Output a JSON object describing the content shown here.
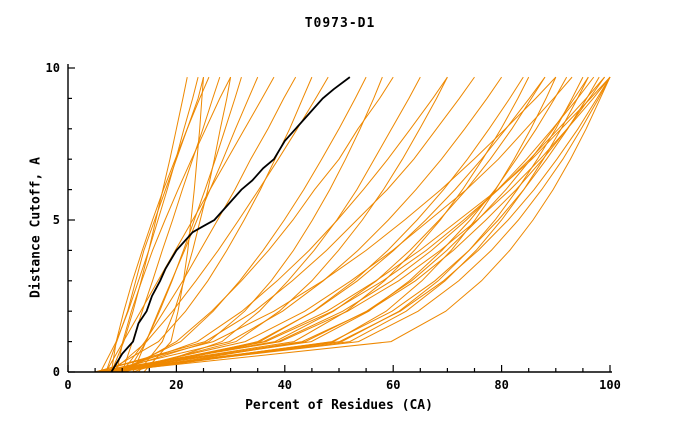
{
  "chart_data": {
    "type": "line",
    "title": "T0973-D1",
    "xlabel": "Percent of Residues (CA)",
    "ylabel": "Distance Cutoff, A",
    "xlim": [
      0,
      100
    ],
    "ylim": [
      0,
      10
    ],
    "x_major_ticks": [
      0,
      20,
      40,
      60,
      80,
      100
    ],
    "x_minor_step": 5,
    "y_major_ticks": [
      0,
      5,
      10
    ],
    "y_minor_step": 1,
    "grid": false,
    "legend": "none",
    "colors": {
      "model": "#ee8800",
      "highlight": "#000000",
      "axis": "#000000"
    },
    "highlight_series": {
      "name": "black-curve",
      "points": [
        [
          8,
          0
        ],
        [
          10,
          0.6
        ],
        [
          12,
          1
        ],
        [
          13,
          1.6
        ],
        [
          14.5,
          2
        ],
        [
          15.5,
          2.5
        ],
        [
          17,
          3
        ],
        [
          18,
          3.4
        ],
        [
          20,
          4
        ],
        [
          23,
          4.6
        ],
        [
          25,
          4.8
        ],
        [
          27,
          5
        ],
        [
          29,
          5.4
        ],
        [
          32,
          6
        ],
        [
          34,
          6.3
        ],
        [
          36,
          6.7
        ],
        [
          38,
          7
        ],
        [
          40,
          7.6
        ],
        [
          42,
          8
        ],
        [
          44,
          8.4
        ],
        [
          47,
          9
        ],
        [
          49,
          9.3
        ],
        [
          52,
          9.7
        ]
      ]
    },
    "orange_series": {
      "y_levels": [
        0,
        1,
        2,
        3,
        4,
        5,
        6,
        7,
        8,
        9,
        9.7
      ],
      "x_values": [
        [
          7,
          9,
          11,
          12.5,
          14,
          16,
          18,
          20,
          22,
          24,
          25
        ],
        [
          8,
          10.3,
          12,
          13.5,
          14.9,
          16.2,
          17.5,
          18.8,
          20,
          21.2,
          22
        ],
        [
          10,
          11.9,
          13.7,
          15.6,
          17.4,
          19.3,
          21.1,
          23,
          24.9,
          26.7,
          28
        ],
        [
          9,
          10.1,
          11.7,
          13.6,
          15.6,
          17.9,
          20.3,
          22.8,
          25.4,
          28,
          30
        ],
        [
          6,
          8.9,
          11.1,
          13,
          14.9,
          16.6,
          18.3,
          19.9,
          21.4,
          23,
          24
        ],
        [
          12,
          14.4,
          16.7,
          19.1,
          21.5,
          23.8,
          26.2,
          28.6,
          30.9,
          33.3,
          35
        ],
        [
          8,
          8.9,
          10.3,
          11.9,
          13.7,
          15.6,
          17.6,
          19.8,
          22,
          24.3,
          26
        ],
        [
          11,
          14.4,
          16.9,
          19.2,
          21.3,
          23.3,
          25.3,
          27.2,
          29,
          30.8,
          32
        ],
        [
          7,
          10.2,
          13.4,
          16.6,
          19.8,
          23,
          26.2,
          29.4,
          32.6,
          35.8,
          38
        ],
        [
          10,
          14.2,
          17.7,
          21.2,
          24.4,
          27.6,
          30.8,
          33.7,
          36.9,
          39.8,
          42
        ],
        [
          14,
          19,
          20.3,
          21.3,
          22.1,
          22.7,
          23.3,
          23.8,
          24.3,
          24.7,
          25
        ],
        [
          13,
          17.4,
          19.6,
          21.4,
          23,
          24.4,
          25.8,
          27,
          28.1,
          29.3,
          30
        ],
        [
          8,
          14.5,
          19.3,
          23.6,
          27.7,
          31.5,
          35.2,
          38.8,
          42.3,
          45.7,
          48
        ],
        [
          9,
          20.8,
          26.8,
          31.7,
          36,
          39.9,
          43.5,
          46.8,
          50,
          53,
          55
        ],
        [
          10,
          20,
          26.5,
          32,
          37,
          41.5,
          45.5,
          50,
          53.5,
          57.5,
          60
        ],
        [
          7,
          16.7,
          21.7,
          25.8,
          29.3,
          32.5,
          35.5,
          38.2,
          40.9,
          43.3,
          45
        ],
        [
          12,
          28.4,
          35.3,
          40.6,
          45.4,
          49.6,
          53.3,
          56.5,
          59.7,
          62.9,
          65
        ],
        [
          8,
          26,
          32.6,
          37.5,
          41.6,
          45.1,
          48.3,
          51.2,
          53.9,
          56.4,
          58
        ],
        [
          9,
          31,
          39,
          45,
          49.9,
          54.3,
          58.2,
          61.7,
          64.9,
          68,
          70
        ],
        [
          6,
          41.7,
          51.4,
          58.4,
          63.9,
          68.7,
          72.8,
          76.5,
          79.9,
          83,
          85
        ],
        [
          7,
          49,
          58.7,
          65.3,
          70.7,
          75.1,
          78.9,
          82.3,
          85.4,
          88.2,
          90
        ],
        [
          5,
          50.5,
          61.1,
          68.3,
          74,
          78.8,
          82.9,
          86.6,
          90,
          93,
          95
        ],
        [
          6,
          53.6,
          64.6,
          72.1,
          78.1,
          83.1,
          87.4,
          91.3,
          94.7,
          97.9,
          100
        ],
        [
          8,
          48.7,
          59.8,
          67.7,
          74,
          79.4,
          84.1,
          88.3,
          92.2,
          95.7,
          98
        ],
        [
          5,
          38.2,
          49,
          56.9,
          63.1,
          68.5,
          73.5,
          77.9,
          81.9,
          85.5,
          88
        ],
        [
          7,
          59.6,
          69.7,
          76.3,
          81.5,
          85.8,
          89.5,
          92.7,
          95.6,
          98.2,
          100
        ],
        [
          6,
          44.9,
          55.5,
          63,
          69,
          74.2,
          78.8,
          82.7,
          86.4,
          89.8,
          92
        ],
        [
          9,
          43.8,
          55.1,
          63.4,
          69.9,
          75.6,
          80.8,
          85.4,
          89.6,
          93.4,
          96
        ],
        [
          5,
          39.2,
          51.6,
          61,
          68.7,
          75.5,
          81.6,
          87.1,
          92.1,
          96.9,
          100
        ],
        [
          8,
          35.4,
          45.3,
          52.8,
          59,
          64.4,
          69.3,
          73.7,
          77.7,
          81.5,
          84
        ],
        [
          6,
          38.8,
          50.7,
          59.7,
          67.1,
          73.5,
          79.3,
          84.6,
          89.4,
          94,
          97
        ],
        [
          7,
          36.5,
          48.8,
          58.1,
          66.1,
          73,
          79.4,
          85.2,
          90.5,
          95.6,
          99
        ],
        [
          10,
          36.1,
          47.8,
          56.8,
          64.9,
          72.1,
          79.3,
          85.6,
          91,
          96.4,
          100
        ],
        [
          6,
          29.8,
          39.6,
          47.1,
          53.5,
          59.1,
          64.2,
          68.9,
          73.2,
          77.3,
          80
        ],
        [
          8,
          32.7,
          43.7,
          52.2,
          59.9,
          66.7,
          73.5,
          79.4,
          84.5,
          89.6,
          93
        ],
        [
          5,
          26.8,
          38,
          47,
          55,
          62.1,
          68.8,
          74.9,
          80.7,
          86.3,
          90
        ],
        [
          9,
          50.1,
          61.3,
          69.3,
          75.7,
          81.2,
          86,
          90.2,
          94.1,
          97.6,
          100
        ],
        [
          7,
          52,
          62.4,
          69.6,
          75.3,
          80,
          84.1,
          87.7,
          91,
          94,
          96
        ],
        [
          6,
          43.2,
          55.3,
          64.1,
          71.1,
          77.1,
          82.7,
          87.6,
          92.1,
          96.2,
          99
        ],
        [
          10,
          35,
          45.4,
          53.4,
          60.1,
          66,
          71.4,
          76.3,
          80.8,
          85.1,
          88
        ],
        [
          5,
          25.3,
          34.4,
          41.4,
          47.7,
          53.3,
          58.9,
          63.8,
          68,
          72.2,
          75
        ],
        [
          8,
          23.9,
          32.1,
          38.6,
          44.5,
          49.7,
          54.5,
          59,
          63.2,
          67.3,
          70
        ]
      ]
    }
  }
}
